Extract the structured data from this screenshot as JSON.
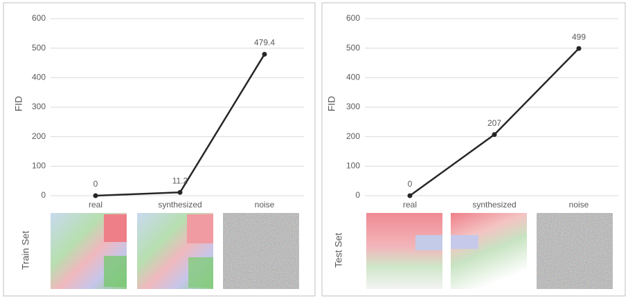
{
  "chart_data": [
    {
      "type": "line",
      "y_label": "FID",
      "image_row_label": "Train Set",
      "categories": [
        "real",
        "synthesized",
        "noise"
      ],
      "values": [
        0,
        11.2,
        479.4
      ],
      "color": "#262626",
      "ylim": [
        0,
        600
      ],
      "yticks": [
        0,
        100,
        200,
        300,
        400,
        500,
        600
      ],
      "grid": true
    },
    {
      "type": "line",
      "y_label": "FID",
      "image_row_label": "Test Set",
      "categories": [
        "real",
        "synthesized",
        "noise"
      ],
      "values": [
        0,
        207,
        499
      ],
      "color": "#262626",
      "ylim": [
        0,
        600
      ],
      "yticks": [
        0,
        100,
        200,
        300,
        400,
        500,
        600
      ],
      "grid": true
    }
  ]
}
